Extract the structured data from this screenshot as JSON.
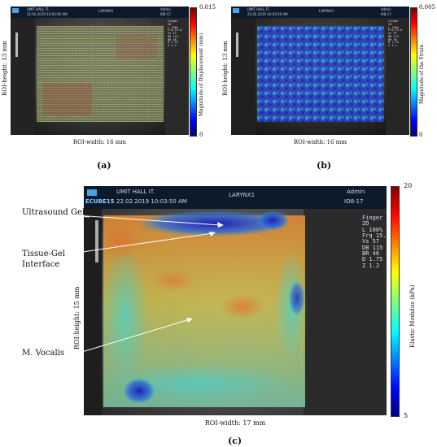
{
  "panel_a": {
    "label": "(a)",
    "header": {
      "left1": "UMIT HALL IT.",
      "left2": "22.02.2019  10:03:50 AM",
      "center": "LARYNX1",
      "right1": "Admin",
      "right2": "I08-17"
    },
    "side": "Finger\n2D\nL 100%\nFrq 15.0\nVs 57\nDB 115\nBR 46\nD 1.75\nZ 1.2",
    "roi_height": "ROI-height: 13 mm",
    "roi_width": "ROI-width: 16 mm",
    "colorbar": {
      "label": "Magnitude of Displacement (mm)",
      "max": "0.015",
      "min": "0"
    }
  },
  "panel_b": {
    "label": "(b)",
    "header": {
      "left1": "UMIT HALL IT.",
      "left2": "22.02.2019  10:03:50 AM",
      "center": "LARYNX1",
      "right1": "Admin",
      "right2": "I08-17"
    },
    "side": "Finger\n2D\nL 100%\nFrq 15.0\nVs 57\nDB 115\nBR 46\nD 1.75\nZ 1.2",
    "roi_height": "ROI-height: 13 mm",
    "roi_width": "ROI-width: 16 mm",
    "colorbar": {
      "label": "Magnitude of the Strain",
      "max": "0.005",
      "min": "0"
    }
  },
  "panel_c": {
    "label": "(c)",
    "header": {
      "left1": "UMIT HALL iT.",
      "left2": "22.02.2019  10:03:50 AM",
      "center": "LARYNX1",
      "right1": "Admin",
      "right2": "IO8-17",
      "logo": "ECUBE15"
    },
    "side": "Finger\n2D\nL 100%\nFrq 15.0\nVs 57\nDB 115\nBR 46\nD 1.75\nZ 1.2",
    "roi_height": "ROI-height: 15 mm",
    "roi_width": "ROI-width: 17 mm",
    "colorbar": {
      "label": "Elastic Modulus (kPa)",
      "max": "20",
      "min": "5"
    },
    "annotations": {
      "gel": "Ultrasound Gel",
      "interface1": "Tissue-Gel",
      "interface2": "Interface",
      "vocalis": "M. Vocalis"
    }
  },
  "colors": {
    "jet_top": "#7f0000",
    "jet_mid": "#7fff7f",
    "jet_bottom": "#00007f",
    "header_bg": "#0c1a2c"
  }
}
